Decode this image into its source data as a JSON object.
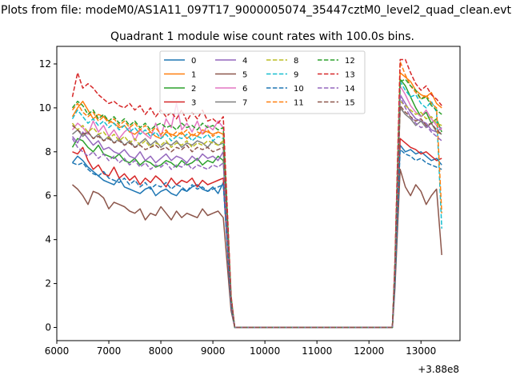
{
  "figure_title": "Plots from file: modeM0/AS1A11_097T17_9000005074_35447cztM0_level2_quad_clean.evt",
  "chart_data": {
    "type": "line",
    "title": "Quadrant 1 module wise count rates with 100.0s bins.",
    "xlabel": "",
    "ylabel": "",
    "x_offset_label": "+3.88e8",
    "xlim": [
      6000,
      13750
    ],
    "ylim": [
      -0.6,
      12.8
    ],
    "x_ticks": [
      6000,
      7000,
      8000,
      9000,
      10000,
      11000,
      12000,
      13000
    ],
    "x_tick_labels": [
      "6000",
      "7000",
      "8000",
      "9000",
      "10000",
      "11000",
      "12000",
      "13000"
    ],
    "y_ticks": [
      0,
      2,
      4,
      6,
      8,
      10,
      12
    ],
    "y_tick_labels": [
      "0",
      "2",
      "4",
      "6",
      "8",
      "10",
      "12"
    ],
    "legend_position": "top-center",
    "legend_columns": 4,
    "x": {
      "segment1_start": 6300,
      "segment1_end": 9250,
      "step": 100,
      "gap_points": [
        9350,
        9420,
        12450,
        12500
      ],
      "segment2_start": 12600,
      "segment2_end": 13400
    },
    "series": [
      {
        "name": "0",
        "style": "solid",
        "color": "#1f77b4",
        "seg1": [
          7.5,
          7.8,
          7.6,
          7.3,
          7.1,
          6.9,
          6.7,
          6.6,
          6.5,
          6.8,
          6.4,
          6.3,
          6.2,
          6.1,
          6.3,
          6.4,
          6.0,
          6.2,
          6.3,
          6.1,
          6.0,
          6.3,
          6.2,
          6.4,
          6.5,
          6.3,
          6.2,
          6.4,
          6.1,
          6.6
        ],
        "seg2": [
          8.3,
          8.0,
          8.1,
          7.9,
          8.0,
          7.8,
          7.6,
          7.7,
          7.4
        ]
      },
      {
        "name": "1",
        "style": "solid",
        "color": "#ff7f0e",
        "seg1": [
          9.6,
          10.0,
          10.3,
          9.9,
          9.5,
          9.7,
          9.6,
          9.4,
          9.3,
          9.1,
          9.2,
          8.9,
          8.8,
          9.0,
          8.8,
          8.9,
          8.7,
          8.6,
          8.9,
          8.8,
          8.7,
          8.9,
          8.6,
          8.8,
          8.7,
          9.0,
          8.9,
          8.8,
          8.9,
          8.8
        ],
        "seg2": [
          11.6,
          11.4,
          11.2,
          10.8,
          10.6,
          10.5,
          10.7,
          10.2,
          10.0
        ]
      },
      {
        "name": "2",
        "style": "solid",
        "color": "#2ca02c",
        "seg1": [
          8.2,
          8.6,
          8.5,
          8.2,
          8.0,
          8.3,
          7.9,
          7.8,
          7.7,
          7.9,
          7.6,
          7.5,
          7.7,
          7.4,
          7.6,
          7.5,
          7.3,
          7.4,
          7.6,
          7.5,
          7.3,
          7.6,
          7.4,
          7.5,
          7.7,
          7.4,
          7.6,
          7.5,
          7.8,
          7.6
        ],
        "seg2": [
          11.3,
          11.0,
          10.5,
          10.0,
          9.6,
          9.8,
          9.3,
          9.5,
          8.9
        ]
      },
      {
        "name": "3",
        "style": "solid",
        "color": "#d62728",
        "seg1": [
          8.0,
          7.9,
          8.2,
          7.6,
          7.2,
          7.4,
          7.0,
          6.9,
          7.3,
          6.8,
          7.0,
          6.7,
          6.9,
          6.5,
          6.8,
          6.6,
          6.9,
          6.7,
          6.4,
          6.8,
          6.5,
          6.7,
          6.6,
          6.8,
          6.4,
          6.7,
          6.5,
          6.6,
          6.7,
          6.8
        ],
        "seg2": [
          8.6,
          8.4,
          8.2,
          8.1,
          7.9,
          8.0,
          7.8,
          7.6,
          7.7
        ]
      },
      {
        "name": "4",
        "style": "solid",
        "color": "#9467bd",
        "seg1": [
          8.7,
          8.4,
          8.9,
          8.6,
          8.3,
          8.5,
          8.1,
          8.2,
          8.0,
          7.9,
          8.1,
          7.8,
          7.7,
          8.0,
          7.6,
          7.8,
          7.5,
          7.7,
          7.9,
          7.6,
          7.8,
          7.7,
          7.5,
          7.8,
          7.6,
          7.9,
          7.7,
          7.8,
          7.6,
          8.0
        ],
        "seg2": [
          10.6,
          10.2,
          9.8,
          9.5,
          9.4,
          9.3,
          9.0,
          8.9,
          9.1
        ]
      },
      {
        "name": "5",
        "style": "solid",
        "color": "#8c564b",
        "seg1": [
          6.5,
          6.3,
          6.0,
          5.6,
          6.2,
          6.1,
          5.9,
          5.4,
          5.7,
          5.6,
          5.5,
          5.3,
          5.2,
          5.4,
          4.9,
          5.2,
          5.1,
          5.5,
          5.2,
          4.9,
          5.3,
          5.0,
          5.2,
          5.1,
          5.0,
          5.4,
          5.1,
          5.2,
          5.3,
          5.0
        ],
        "seg2": [
          7.2,
          6.4,
          6.0,
          6.5,
          6.2,
          5.6,
          6.0,
          6.3,
          3.3
        ]
      },
      {
        "name": "6",
        "style": "solid",
        "color": "#e377c2",
        "seg1": [
          9.0,
          9.3,
          9.1,
          8.8,
          9.4,
          8.9,
          9.2,
          8.7,
          9.0,
          8.6,
          8.9,
          9.1,
          8.5,
          9.0,
          8.8,
          8.6,
          9.3,
          8.7,
          9.5,
          9.1,
          10.2,
          9.0,
          9.3,
          8.9,
          9.4,
          8.8,
          9.2,
          9.0,
          9.4,
          9.1
        ],
        "seg2": [
          11.0,
          10.6,
          10.1,
          9.8,
          9.6,
          9.9,
          9.5,
          9.2,
          9.0
        ]
      },
      {
        "name": "7",
        "style": "solid",
        "color": "#7f7f7f",
        "seg1": [
          8.8,
          9.0,
          8.7,
          8.9,
          8.6,
          8.8,
          8.5,
          8.7,
          8.4,
          8.6,
          8.3,
          8.5,
          8.2,
          8.4,
          8.6,
          8.3,
          8.5,
          8.2,
          8.4,
          8.3,
          8.5,
          8.2,
          8.4,
          8.3,
          8.5,
          8.4,
          8.2,
          8.5,
          8.3,
          8.4
        ],
        "seg2": [
          10.0,
          9.7,
          9.5,
          9.2,
          9.4,
          9.1,
          9.3,
          8.9,
          8.8
        ]
      },
      {
        "name": "8",
        "style": "dashed",
        "color": "#bcbd22",
        "seg1": [
          9.3,
          9.0,
          9.2,
          8.9,
          9.1,
          8.8,
          8.9,
          8.6,
          8.8,
          8.5,
          8.7,
          8.4,
          8.6,
          8.3,
          8.5,
          8.2,
          8.4,
          8.3,
          8.5,
          8.2,
          8.4,
          8.3,
          8.5,
          8.2,
          8.4,
          8.3,
          8.5,
          8.4,
          8.3,
          8.5
        ],
        "seg2": [
          10.3,
          10.1,
          9.9,
          9.7,
          9.8,
          9.5,
          9.6,
          9.3,
          9.2
        ]
      },
      {
        "name": "9",
        "style": "dashed",
        "color": "#17becf",
        "seg1": [
          9.5,
          9.9,
          9.6,
          9.3,
          9.5,
          9.2,
          9.4,
          9.1,
          9.3,
          9.0,
          9.2,
          8.9,
          9.1,
          8.8,
          9.0,
          8.7,
          8.9,
          8.6,
          8.8,
          8.5,
          8.7,
          8.6,
          8.8,
          8.5,
          8.7,
          8.6,
          8.8,
          8.5,
          8.7,
          8.6
        ],
        "seg2": [
          11.2,
          10.8,
          10.5,
          10.6,
          10.2,
          10.0,
          10.3,
          9.8,
          4.5
        ]
      },
      {
        "name": "10",
        "style": "dashed",
        "color": "#1f77b4",
        "seg1": [
          7.5,
          7.4,
          7.5,
          7.2,
          7.0,
          6.9,
          7.1,
          6.8,
          6.7,
          6.6,
          6.8,
          6.5,
          6.7,
          6.4,
          6.6,
          6.3,
          6.5,
          6.4,
          6.6,
          6.3,
          6.5,
          6.4,
          6.2,
          6.5,
          6.3,
          6.4,
          6.2,
          6.3,
          6.4,
          6.5
        ],
        "seg2": [
          8.1,
          7.9,
          7.8,
          7.6,
          7.7,
          7.5,
          7.4,
          7.3,
          7.2
        ]
      },
      {
        "name": "11",
        "style": "dashed",
        "color": "#ff7f0e",
        "seg1": [
          9.9,
          10.2,
          9.8,
          9.6,
          9.8,
          9.4,
          9.6,
          9.3,
          9.5,
          9.2,
          9.4,
          9.1,
          9.3,
          9.0,
          9.2,
          8.9,
          9.1,
          8.8,
          9.0,
          8.7,
          8.9,
          8.8,
          9.0,
          8.7,
          8.9,
          8.8,
          9.0,
          8.7,
          8.9,
          8.8
        ],
        "seg2": [
          12.1,
          11.5,
          11.0,
          10.7,
          10.4,
          10.6,
          10.2,
          10.0,
          5.2
        ]
      },
      {
        "name": "12",
        "style": "dashed",
        "color": "#2ca02c",
        "seg1": [
          10.0,
          10.3,
          10.1,
          9.7,
          9.9,
          9.5,
          9.7,
          9.4,
          9.6,
          9.3,
          9.5,
          9.2,
          9.4,
          9.1,
          9.3,
          9.0,
          9.2,
          9.3,
          9.1,
          9.2,
          9.0,
          9.3,
          9.1,
          9.2,
          9.0,
          9.3,
          9.1,
          9.2,
          9.0,
          9.1
        ],
        "seg2": [
          11.2,
          11.3,
          11.0,
          10.8,
          10.4,
          10.5,
          10.1,
          9.9,
          9.7
        ]
      },
      {
        "name": "13",
        "style": "dashed",
        "color": "#d62728",
        "seg1": [
          10.5,
          11.6,
          10.9,
          11.1,
          10.9,
          10.6,
          10.4,
          10.2,
          10.3,
          10.1,
          10.0,
          10.2,
          9.9,
          10.1,
          9.7,
          10.0,
          9.6,
          9.9,
          9.6,
          9.8,
          9.5,
          9.9,
          9.4,
          9.8,
          9.5,
          9.9,
          9.4,
          9.5,
          9.3,
          9.6
        ],
        "seg2": [
          12.2,
          12.2,
          11.6,
          11.1,
          10.8,
          11.0,
          10.6,
          10.4,
          10.1
        ]
      },
      {
        "name": "14",
        "style": "dashed",
        "color": "#9467bd",
        "seg1": [
          8.6,
          8.2,
          8.0,
          7.8,
          8.0,
          7.7,
          7.9,
          7.6,
          7.8,
          7.5,
          7.7,
          7.4,
          7.6,
          7.3,
          7.5,
          7.2,
          7.4,
          7.3,
          7.5,
          7.2,
          7.4,
          7.3,
          7.5,
          7.2,
          7.4,
          7.3,
          7.2,
          7.4,
          7.3,
          7.5
        ],
        "seg2": [
          10.5,
          10.0,
          9.6,
          9.3,
          9.1,
          9.2,
          8.9,
          8.7,
          8.5
        ]
      },
      {
        "name": "15",
        "style": "dashed",
        "color": "#8c564b",
        "seg1": [
          9.2,
          9.0,
          8.8,
          8.9,
          8.6,
          8.7,
          8.5,
          8.6,
          8.4,
          8.5,
          8.3,
          8.4,
          8.2,
          8.3,
          8.1,
          8.2,
          8.3,
          8.1,
          8.2,
          8.0,
          8.2,
          8.1,
          8.3,
          8.0,
          8.2,
          8.1,
          8.2,
          8.0,
          8.1,
          8.2
        ],
        "seg2": [
          10.1,
          9.8,
          9.6,
          9.4,
          9.5,
          9.2,
          9.3,
          9.0,
          8.8
        ]
      }
    ]
  }
}
